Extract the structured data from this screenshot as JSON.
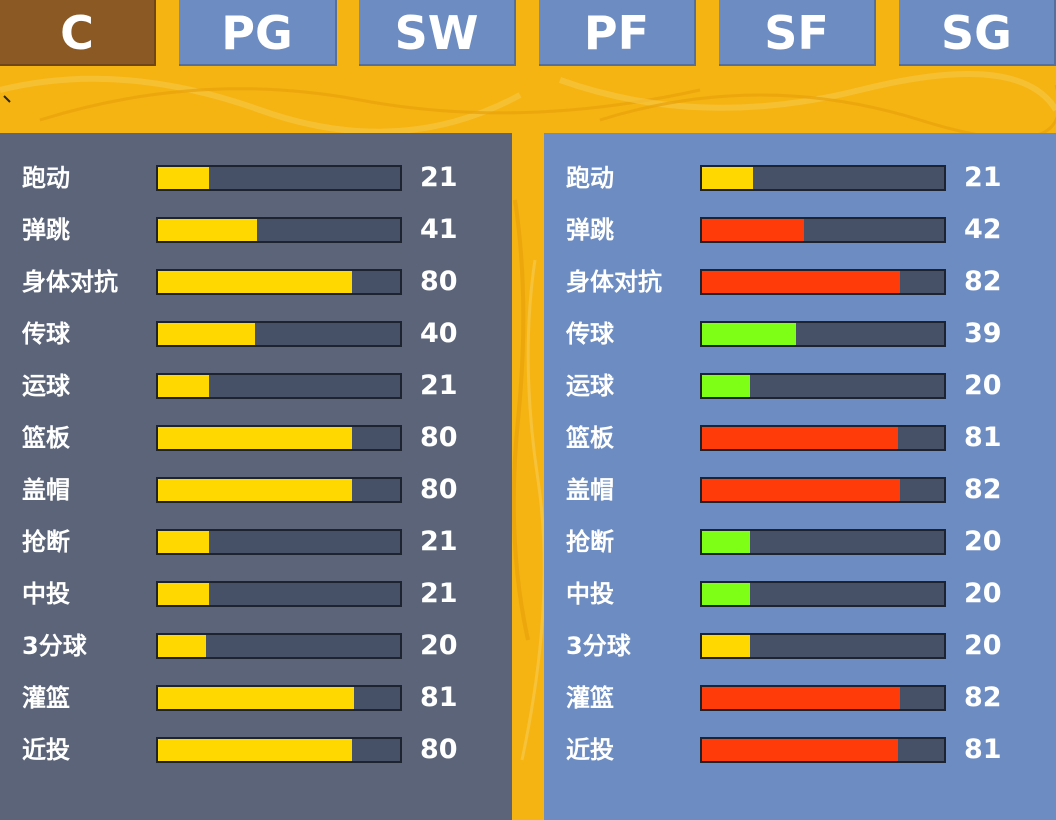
{
  "tabs": [
    {
      "label": "C",
      "active": true
    },
    {
      "label": "PG",
      "active": false
    },
    {
      "label": "SW",
      "active": false
    },
    {
      "label": "PF",
      "active": false
    },
    {
      "label": "SF",
      "active": false
    },
    {
      "label": "SG",
      "active": false
    }
  ],
  "colors": {
    "yellow": "#ffd800",
    "red": "#ff3b0a",
    "green": "#7dff16",
    "panel_left": "#5b6478",
    "panel_right": "#6d8cc2",
    "tab_active": "#8b5a24",
    "tab_inactive": "#6d8cc2",
    "background": "#f5b412"
  },
  "left_panel": {
    "stats": [
      {
        "label": "跑动",
        "value": "21",
        "fill_pct": 21,
        "color": "yellow"
      },
      {
        "label": "弹跳",
        "value": "41",
        "fill_pct": 41,
        "color": "yellow"
      },
      {
        "label": "身体对抗",
        "value": "80",
        "fill_pct": 80,
        "color": "yellow"
      },
      {
        "label": "传球",
        "value": "40",
        "fill_pct": 40,
        "color": "yellow"
      },
      {
        "label": "运球",
        "value": "21",
        "fill_pct": 21,
        "color": "yellow"
      },
      {
        "label": "篮板",
        "value": "80",
        "fill_pct": 80,
        "color": "yellow"
      },
      {
        "label": "盖帽",
        "value": "80",
        "fill_pct": 80,
        "color": "yellow"
      },
      {
        "label": "抢断",
        "value": "21",
        "fill_pct": 21,
        "color": "yellow"
      },
      {
        "label": "中投",
        "value": "21",
        "fill_pct": 21,
        "color": "yellow"
      },
      {
        "label": "3分球",
        "value": "20",
        "fill_pct": 20,
        "color": "yellow"
      },
      {
        "label": "灌篮",
        "value": "81",
        "fill_pct": 81,
        "color": "yellow"
      },
      {
        "label": "近投",
        "value": "80",
        "fill_pct": 80,
        "color": "yellow"
      }
    ]
  },
  "right_panel": {
    "stats": [
      {
        "label": "跑动",
        "value": "21",
        "fill_pct": 21,
        "color": "yellow"
      },
      {
        "label": "弹跳",
        "value": "42",
        "fill_pct": 42,
        "color": "red"
      },
      {
        "label": "身体对抗",
        "value": "82",
        "fill_pct": 82,
        "color": "red"
      },
      {
        "label": "传球",
        "value": "39",
        "fill_pct": 39,
        "color": "green"
      },
      {
        "label": "运球",
        "value": "20",
        "fill_pct": 20,
        "color": "green"
      },
      {
        "label": "篮板",
        "value": "81",
        "fill_pct": 81,
        "color": "red"
      },
      {
        "label": "盖帽",
        "value": "82",
        "fill_pct": 82,
        "color": "red"
      },
      {
        "label": "抢断",
        "value": "20",
        "fill_pct": 20,
        "color": "green"
      },
      {
        "label": "中投",
        "value": "20",
        "fill_pct": 20,
        "color": "green"
      },
      {
        "label": "3分球",
        "value": "20",
        "fill_pct": 20,
        "color": "yellow"
      },
      {
        "label": "灌篮",
        "value": "82",
        "fill_pct": 82,
        "color": "red"
      },
      {
        "label": "近投",
        "value": "81",
        "fill_pct": 81,
        "color": "red"
      }
    ]
  }
}
